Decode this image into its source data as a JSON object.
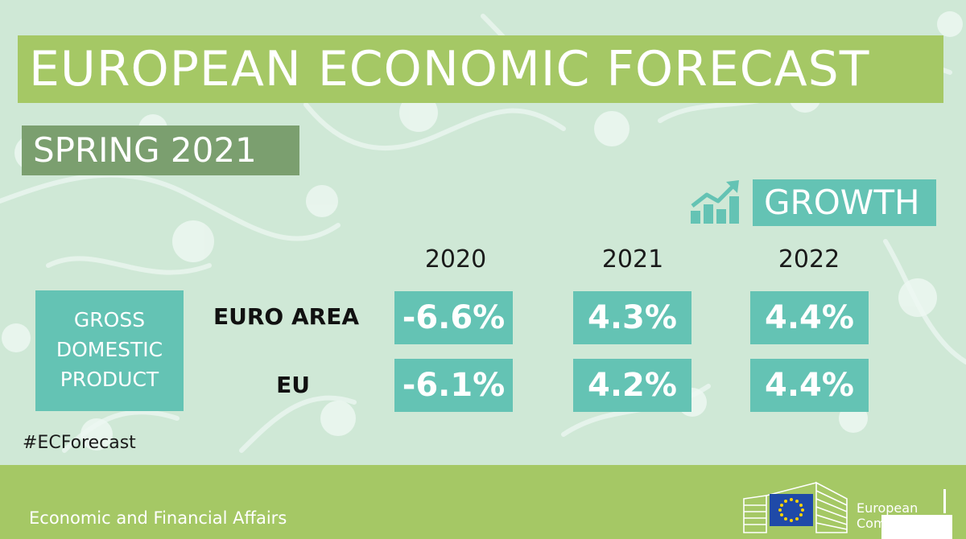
{
  "title": "EUROPEAN ECONOMIC FORECAST",
  "subtitle": "SPRING 2021",
  "section_label": "GROWTH",
  "section_icon": "growth-chart-icon",
  "years": [
    "2020",
    "2021",
    "2022"
  ],
  "indicator": {
    "lines": [
      "GROSS",
      "DOMESTIC",
      "PRODUCT"
    ]
  },
  "rows": [
    {
      "label": "EURO AREA",
      "values": [
        "-6.6%",
        "4.3%",
        "4.4%"
      ]
    },
    {
      "label": "EU",
      "values": [
        "-6.1%",
        "4.2%",
        "4.4%"
      ]
    }
  ],
  "hashtag": "#ECForecast",
  "footer": {
    "department": "Economic and Financial Affairs",
    "logo_text_line1": "European",
    "logo_text_line2": "Com"
  },
  "colors": {
    "background": "#cfe8d6",
    "title_banner": "#a5c865",
    "subtitle_banner": "#7b9f6f",
    "accent_teal": "#64c3b4",
    "footer": "#a5c865",
    "eu_flag_blue": "#1f4aa8",
    "eu_flag_star": "#ffd200"
  }
}
